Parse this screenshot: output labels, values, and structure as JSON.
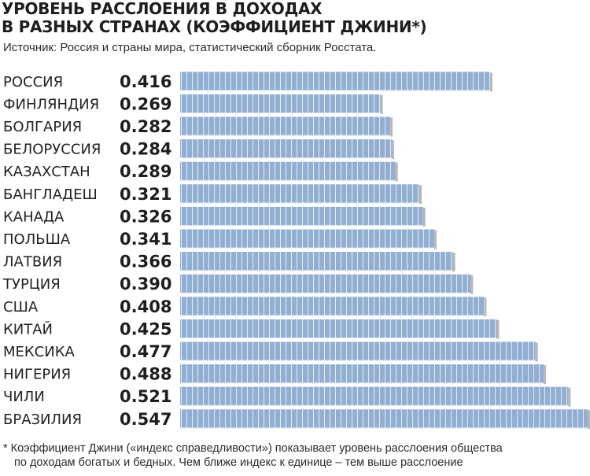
{
  "header": {
    "title_line1": "УРОВЕНЬ РАССЛОЕНИЯ В ДОХОДАХ",
    "title_line2": "В РАЗНЫХ СТРАНАХ (КОЭФФИЦИЕНТ ДЖИНИ*)",
    "source": "Источник: Россия и страны мира, статистический сборник Росстата."
  },
  "footnote": {
    "line1": "* Коэффициент Джини («индекс справедливости») показывает уровень расслоения общества",
    "line2": "по доходам богатых и бедных.  Чем ближе индекс к единице – тем выше расслоение"
  },
  "colors": {
    "bar_fill": "#93aed3",
    "bar_stripe": "#ffffff",
    "bar_shadow": "#b8b8b8",
    "text": "#222222"
  },
  "chart_data": {
    "type": "bar",
    "orientation": "horizontal",
    "title": "УРОВЕНЬ РАССЛОЕНИЯ В ДОХОДАХ В РАЗНЫХ СТРАНАХ (КОЭФФИЦИЕНТ ДЖИНИ*)",
    "categories": [
      "РОССИЯ",
      "ФИНЛЯНДИЯ",
      "БОЛГАРИЯ",
      "БЕЛОРУССИЯ",
      "КАЗАХСТАН",
      "БАНГЛАДЕШ",
      "КАНАДА",
      "ПОЛЬША",
      "ЛАТВИЯ",
      "ТУРЦИЯ",
      "США",
      "КИТАЙ",
      "МЕКСИКА",
      "НИГЕРИЯ",
      "ЧИЛИ",
      "БРАЗИЛИЯ"
    ],
    "values": [
      0.416,
      0.269,
      0.282,
      0.284,
      0.289,
      0.321,
      0.326,
      0.341,
      0.366,
      0.39,
      0.408,
      0.425,
      0.477,
      0.488,
      0.521,
      0.547
    ],
    "value_labels": [
      "0.416",
      "0.269",
      "0.282",
      "0.284",
      "0.289",
      "0.321",
      "0.326",
      "0.341",
      "0.366",
      "0.390",
      "0.408",
      "0.425",
      "0.477",
      "0.488",
      "0.521",
      "0.547"
    ],
    "xlim": [
      0.0,
      0.547
    ],
    "grid": false,
    "legend": "none",
    "xlabel": "",
    "ylabel": ""
  }
}
